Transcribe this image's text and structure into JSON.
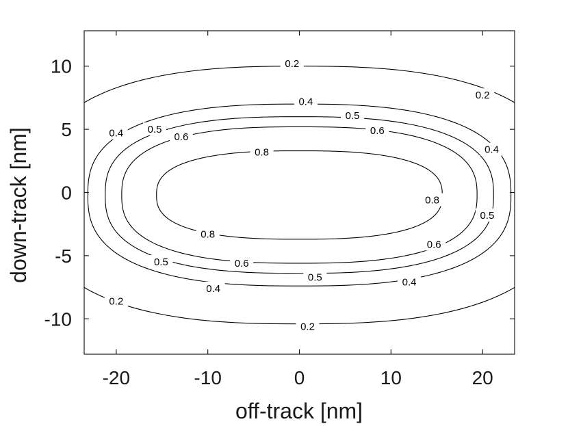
{
  "chart_data": {
    "type": "contour",
    "xlabel": "off-track [nm]",
    "ylabel": "down-track [nm]",
    "xlim": [
      -23.5,
      23.5
    ],
    "ylim": [
      -12.8,
      12.8
    ],
    "xticks": [
      -20,
      -10,
      0,
      10,
      20
    ],
    "xtick_labels": [
      "-20",
      "-10",
      "0",
      "10",
      "20"
    ],
    "yticks": [
      -10,
      -5,
      0,
      5,
      10
    ],
    "ytick_labels": [
      "-10",
      "-5",
      "0",
      "5",
      "10"
    ],
    "grid": false,
    "levels": [
      {
        "value": 0.2,
        "label": "0.2",
        "half_width_x": 29,
        "half_height_y": 10.2,
        "center_y": -0.2
      },
      {
        "value": 0.4,
        "label": "0.4",
        "half_width_x": 23.1,
        "half_height_y": 7.2,
        "center_y": -0.2
      },
      {
        "value": 0.5,
        "label": "0.5",
        "half_width_x": 21.2,
        "half_height_y": 6.2,
        "center_y": -0.2
      },
      {
        "value": 0.6,
        "label": "0.6",
        "half_width_x": 19.4,
        "half_height_y": 5.4,
        "center_y": -0.2
      },
      {
        "value": 0.8,
        "label": "0.8",
        "half_width_x": 15.6,
        "half_height_y": 3.5,
        "center_y": -0.2
      }
    ],
    "level_labels": [
      {
        "text": "0.2",
        "x": -0.8,
        "y": 10.2
      },
      {
        "text": "0.2",
        "x": 20.0,
        "y": 7.7
      },
      {
        "text": "0.2",
        "x": -20.0,
        "y": -8.6
      },
      {
        "text": "0.2",
        "x": 0.9,
        "y": -10.6
      },
      {
        "text": "0.4",
        "x": 0.7,
        "y": 7.2
      },
      {
        "text": "0.4",
        "x": -20.0,
        "y": 4.7
      },
      {
        "text": "0.4",
        "x": 21.0,
        "y": 3.4
      },
      {
        "text": "0.4",
        "x": -9.4,
        "y": -7.6
      },
      {
        "text": "0.4",
        "x": 12.0,
        "y": -7.1
      },
      {
        "text": "0.5",
        "x": 5.8,
        "y": 6.1
      },
      {
        "text": "0.5",
        "x": -15.8,
        "y": 5.0
      },
      {
        "text": "0.5",
        "x": 20.5,
        "y": -1.8
      },
      {
        "text": "0.5",
        "x": -15.1,
        "y": -5.5
      },
      {
        "text": "0.5",
        "x": 1.7,
        "y": -6.7
      },
      {
        "text": "0.6",
        "x": 8.5,
        "y": 4.9
      },
      {
        "text": "0.6",
        "x": -12.9,
        "y": 4.4
      },
      {
        "text": "0.6",
        "x": 14.7,
        "y": -4.1
      },
      {
        "text": "0.6",
        "x": -6.3,
        "y": -5.6
      },
      {
        "text": "0.8",
        "x": -4.1,
        "y": 3.2
      },
      {
        "text": "0.8",
        "x": 14.5,
        "y": -0.6
      },
      {
        "text": "0.8",
        "x": -10.0,
        "y": -3.3
      }
    ]
  }
}
